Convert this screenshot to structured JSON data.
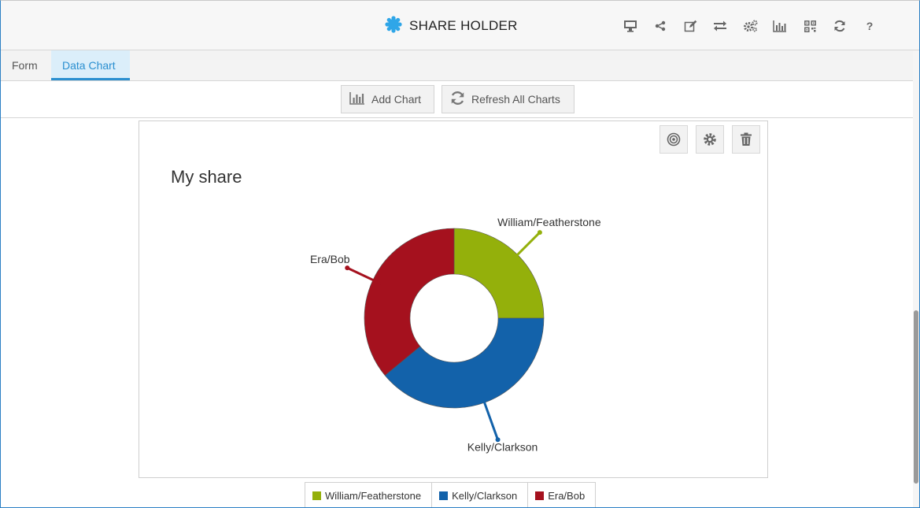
{
  "app": {
    "title": "SHARE HOLDER"
  },
  "toolbar": {
    "icons": [
      "desktop-icon",
      "share-icon",
      "edit-icon",
      "swap-icon",
      "settings-icon",
      "bar-chart-icon",
      "qr-code-icon",
      "refresh-icon",
      "help-icon"
    ]
  },
  "tabs": [
    {
      "label": "Form",
      "active": false
    },
    {
      "label": "Data Chart",
      "active": true
    }
  ],
  "actions": {
    "add_chart": "Add Chart",
    "refresh_all": "Refresh All Charts"
  },
  "chart_panel": {
    "buttons": [
      "target-icon",
      "gear-icon",
      "trash-icon"
    ]
  },
  "colors": {
    "accent": "#2a8fd0",
    "william": "#94b00b",
    "kelly": "#1362aa",
    "era": "#a5111e"
  },
  "chart_data": {
    "type": "pie",
    "variant": "donut",
    "title": "My share",
    "categories": [
      "William/Featherstone",
      "Kelly/Clarkson",
      "Era/Bob"
    ],
    "values": [
      25,
      39,
      36
    ],
    "legend": "bottom",
    "colors": [
      "#94b00b",
      "#1362aa",
      "#a5111e"
    ]
  }
}
